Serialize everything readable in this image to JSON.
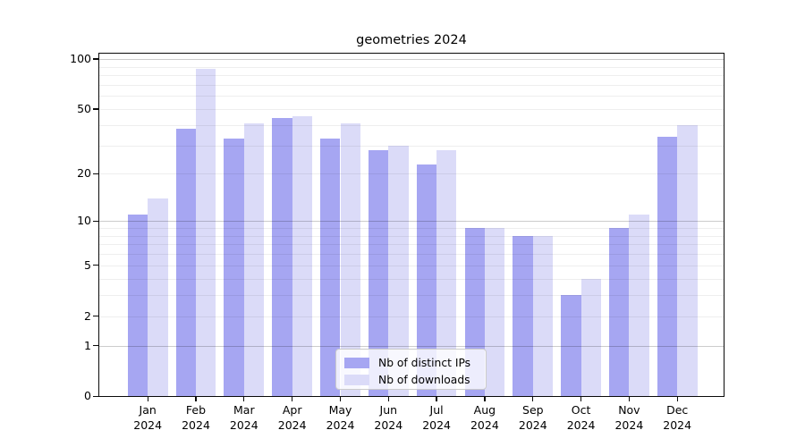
{
  "chart_data": {
    "type": "bar",
    "title": "geometries 2024",
    "categories": [
      "Jan",
      "Feb",
      "Mar",
      "Apr",
      "May",
      "Jun",
      "Jul",
      "Aug",
      "Sep",
      "Oct",
      "Nov",
      "Dec"
    ],
    "category_year": "2024",
    "series": [
      {
        "name": "Nb of distinct IPs",
        "color": "#a6a6f2",
        "values": [
          11,
          38,
          33,
          44,
          33,
          28,
          23,
          9,
          8,
          3,
          9,
          34
        ]
      },
      {
        "name": "Nb of downloads",
        "color": "#dbdbf8",
        "values": [
          14,
          87,
          41,
          45,
          41,
          30,
          28,
          9,
          8,
          4,
          11,
          40
        ]
      }
    ],
    "yscale": "symlog",
    "ylim": [
      0,
      100
    ],
    "y_ticks": [
      0,
      1,
      2,
      5,
      10,
      20,
      50,
      100
    ],
    "y_major_gridlines": [
      1,
      10,
      100
    ],
    "y_minor_gridlines": [
      2,
      3,
      4,
      5,
      6,
      7,
      8,
      9,
      20,
      30,
      40,
      50,
      60,
      70,
      80,
      90
    ],
    "grid": "horizontal",
    "legend_position": "lower center",
    "axis_color": "#0a0a0a",
    "background_color": "#ffffff"
  }
}
